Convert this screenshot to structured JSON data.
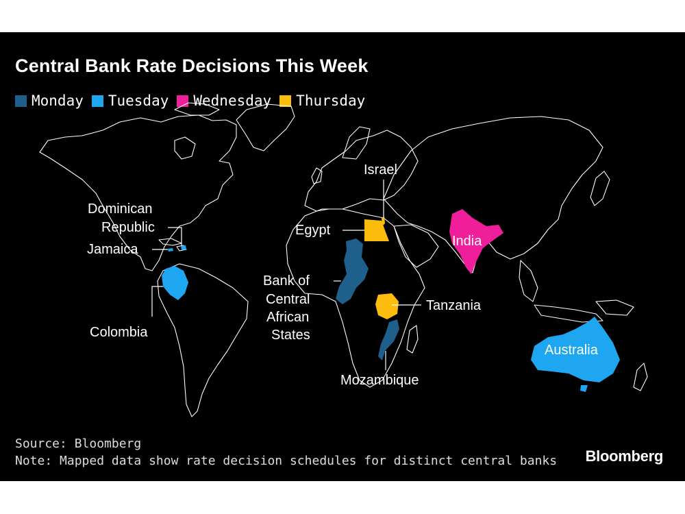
{
  "title": "Central Bank Rate Decisions This Week",
  "legend": [
    {
      "label": "Monday",
      "color": "#1f5f8b"
    },
    {
      "label": "Tuesday",
      "color": "#1ea7f0"
    },
    {
      "label": "Wednesday",
      "color": "#ef1e9a"
    },
    {
      "label": "Thursday",
      "color": "#fbbc0d"
    }
  ],
  "countries": {
    "israel": {
      "label": "Israel",
      "day": "Thursday"
    },
    "egypt": {
      "label": "Egypt",
      "day": "Thursday"
    },
    "dominican_republic": {
      "label_line1": "Dominican",
      "label_line2": "Republic",
      "day": "Tuesday"
    },
    "jamaica": {
      "label": "Jamaica",
      "day": "Tuesday"
    },
    "colombia": {
      "label": "Colombia",
      "day": "Tuesday"
    },
    "beac": {
      "line1": "Bank of",
      "line2": "Central",
      "line3": "African",
      "line4": "States",
      "day": "Monday"
    },
    "india": {
      "label": "India",
      "day": "Wednesday"
    },
    "tanzania": {
      "label": "Tanzania",
      "day": "Thursday"
    },
    "mozambique": {
      "label": "Mozambique",
      "day": "Monday"
    },
    "australia": {
      "label": "Australia",
      "day": "Tuesday"
    }
  },
  "source": "Source: Bloomberg",
  "note": "Note: Mapped data show rate decision schedules for distinct central banks",
  "brand": "Bloomberg"
}
